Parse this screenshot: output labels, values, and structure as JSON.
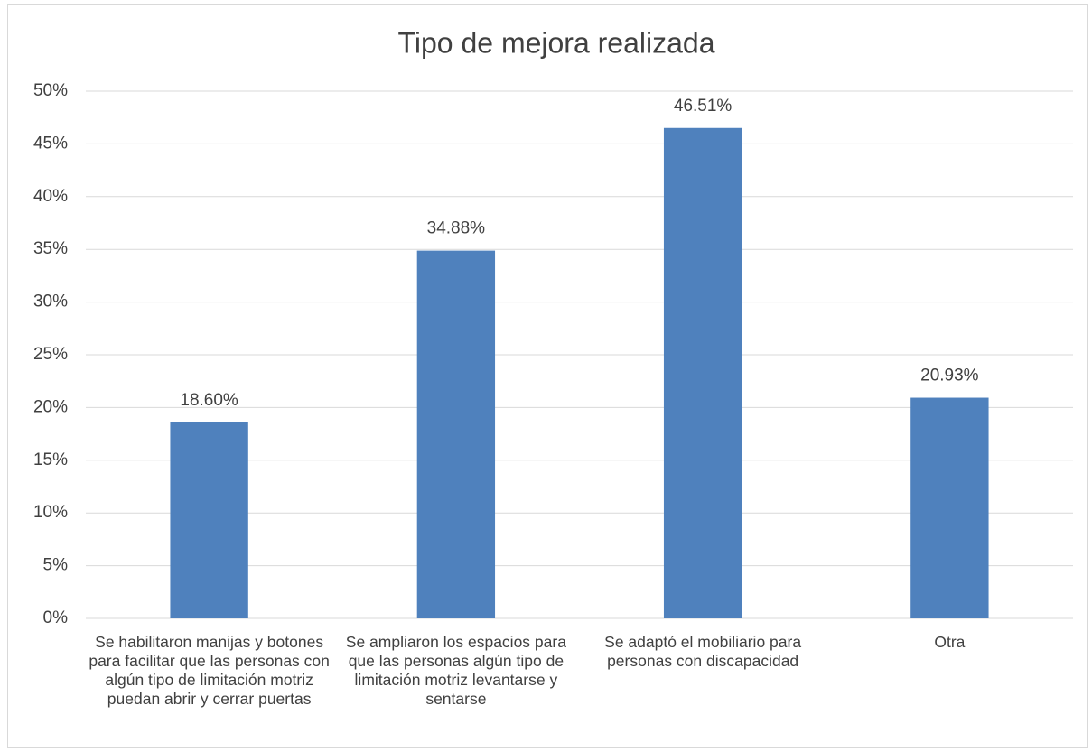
{
  "chart_data": {
    "type": "bar",
    "title": "Tipo de mejora realizada",
    "categories": [
      "Se habilitaron manijas y botones para facilitar que las personas con algún tipo de limitación motriz puedan abrir y cerrar puertas",
      "Se ampliaron los espacios para que las personas algún tipo de limitación motriz levantarse y sentarse",
      "Se adaptó el mobiliario para personas con discapacidad",
      "Otra"
    ],
    "values": [
      18.6,
      34.88,
      46.51,
      20.93
    ],
    "value_labels": [
      "18.60%",
      "34.88%",
      "46.51%",
      "20.93%"
    ],
    "color": "#4f81bd",
    "ylim": [
      0,
      50
    ],
    "yticks": [
      {
        "value": 0,
        "label": "0%"
      },
      {
        "value": 5,
        "label": "5%"
      },
      {
        "value": 10,
        "label": "10%"
      },
      {
        "value": 15,
        "label": "15%"
      },
      {
        "value": 20,
        "label": "20%"
      },
      {
        "value": 25,
        "label": "25%"
      },
      {
        "value": 30,
        "label": "30%"
      },
      {
        "value": 35,
        "label": "35%"
      },
      {
        "value": 40,
        "label": "40%"
      },
      {
        "value": 45,
        "label": "45%"
      },
      {
        "value": 50,
        "label": "50%"
      }
    ],
    "grid": true
  }
}
